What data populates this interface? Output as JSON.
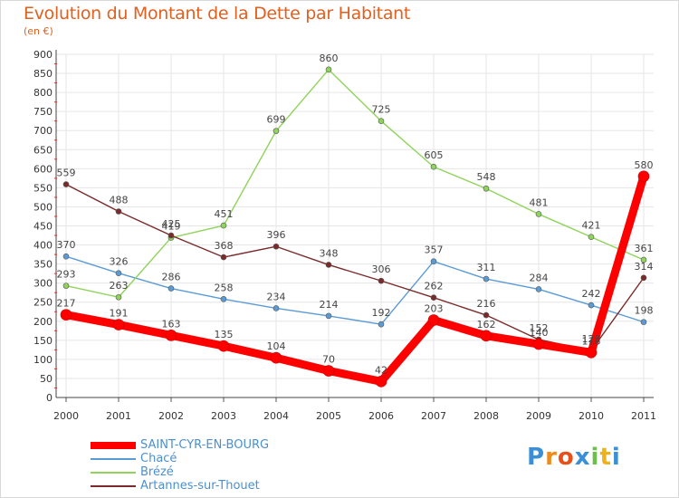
{
  "header": {
    "title": "Evolution du Montant de la Dette par Habitant",
    "subtitle": "(en €)"
  },
  "logo": {
    "text": "Proxiti",
    "letters": [
      "P",
      "r",
      "o",
      "x",
      "i",
      "t",
      "i"
    ],
    "colors": [
      "#3a8fd6",
      "#f08a1c",
      "#e8501a",
      "#3a8fd6",
      "#6cc04a",
      "#f0b21c",
      "#3a8fd6"
    ]
  },
  "chart_data": {
    "type": "line",
    "title": "Evolution du Montant de la Dette par Habitant",
    "subtitle": "(en €)",
    "xlabel": "",
    "ylabel": "",
    "x": [
      "2000",
      "2001",
      "2002",
      "2003",
      "2004",
      "2005",
      "2006",
      "2007",
      "2008",
      "2009",
      "2010",
      "2011"
    ],
    "ylim": [
      0,
      900
    ],
    "yticks": [
      0,
      50,
      100,
      150,
      200,
      250,
      300,
      350,
      400,
      450,
      500,
      550,
      600,
      650,
      700,
      750,
      800,
      850,
      900
    ],
    "grid": true,
    "legend_placement": "bottom-left",
    "series": [
      {
        "name": "SAINT-CYR-EN-BOURG",
        "color": "#ff0000",
        "values": [
          217,
          191,
          163,
          135,
          104,
          70,
          42,
          203,
          162,
          140,
          118,
          580
        ]
      },
      {
        "name": "Chacé",
        "color": "#5b9bd5",
        "values": [
          370,
          326,
          286,
          258,
          234,
          214,
          192,
          357,
          311,
          284,
          242,
          198
        ]
      },
      {
        "name": "Brézé",
        "color": "#8fd45a",
        "values": [
          293,
          263,
          419,
          451,
          699,
          860,
          725,
          605,
          548,
          481,
          421,
          361
        ]
      },
      {
        "name": "Artannes-sur-Thouet",
        "color": "#7a2a2a",
        "values": [
          559,
          488,
          425,
          368,
          396,
          348,
          306,
          262,
          216,
          152,
          123,
          314
        ]
      }
    ]
  }
}
